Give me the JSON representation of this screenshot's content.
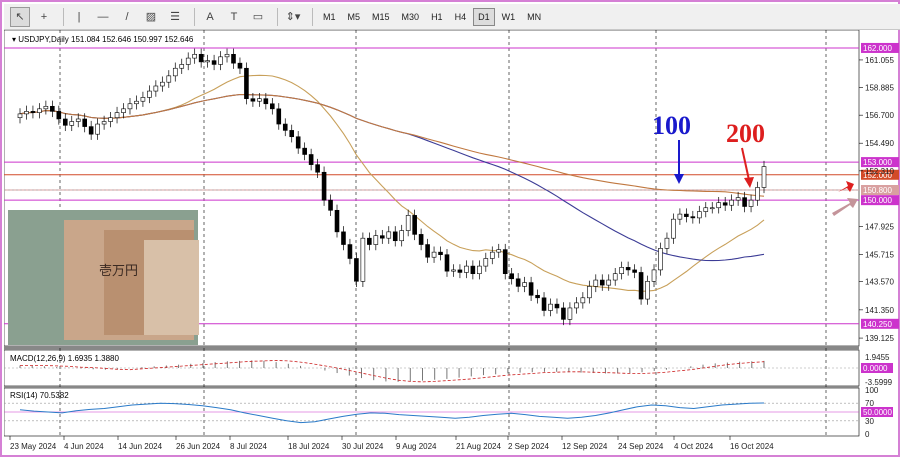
{
  "toolbar": {
    "tools": [
      {
        "name": "cursor-tool",
        "glyph": "↖"
      },
      {
        "name": "crosshair-tool",
        "glyph": "+"
      },
      {
        "name": "vertical-line-tool",
        "glyph": "|"
      },
      {
        "name": "horizontal-line-tool",
        "glyph": "—"
      },
      {
        "name": "trendline-tool",
        "glyph": "/"
      },
      {
        "name": "channel-tool",
        "glyph": "▨"
      },
      {
        "name": "fibonacci-tool",
        "glyph": "☰"
      },
      {
        "name": "text-tool",
        "glyph": "A"
      },
      {
        "name": "text-label-tool",
        "glyph": "T"
      },
      {
        "name": "shapes-tool",
        "glyph": "▭"
      },
      {
        "name": "arrows-tool",
        "glyph": "⇕▾"
      }
    ],
    "timeframes": [
      "M1",
      "M5",
      "M15",
      "M30",
      "H1",
      "H4",
      "D1",
      "W1",
      "MN"
    ],
    "active_timeframe": "D1"
  },
  "chart_data": {
    "type": "candlestick",
    "symbol": "USDJPY,Daily",
    "ohlc_header": "151.084 152.646 150.997 152.646",
    "price_axis_ticks": [
      "161.055",
      "158.885",
      "156.700",
      "154.490",
      "152.310",
      "147.925",
      "145.715",
      "143.570",
      "141.350",
      "139.125"
    ],
    "ylim": [
      138.5,
      163.1
    ],
    "horizontal_levels": [
      {
        "label": "162.000",
        "value": 162.0,
        "color": "#cc33cc"
      },
      {
        "label": "153.000",
        "value": 153.0,
        "color": "#cc33cc"
      },
      {
        "label": "152.000",
        "value": 152.0,
        "color": "#d24a28"
      },
      {
        "label": "150.800",
        "value": 150.8,
        "color": "#d9a0a0"
      },
      {
        "label": "150.000",
        "value": 150.0,
        "color": "#cc33cc"
      },
      {
        "label": "140.250",
        "value": 140.25,
        "color": "#cc33cc"
      }
    ],
    "price_labels_partial": [
      "152.646"
    ],
    "date_labels": [
      "23 May 2024",
      "4 Jun 2024",
      "14 Jun 2024",
      "26 Jun 2024",
      "8 Jul 2024",
      "18 Jul 2024",
      "30 Jul 2024",
      "9 Aug 2024",
      "21 Aug 2024",
      "2 Sep 2024",
      "12 Sep 2024",
      "24 Sep 2024",
      "4 Oct 2024",
      "16 Oct 2024"
    ],
    "closes": [
      156.8,
      157.0,
      156.9,
      157.2,
      157.4,
      157.0,
      156.4,
      155.9,
      156.2,
      156.4,
      155.8,
      155.2,
      156.0,
      156.2,
      156.5,
      156.9,
      157.2,
      157.6,
      157.8,
      158.1,
      158.6,
      159.0,
      159.3,
      159.8,
      160.4,
      160.7,
      161.2,
      161.5,
      160.9,
      161.0,
      160.7,
      161.3,
      161.5,
      160.8,
      160.4,
      158.0,
      157.8,
      158.0,
      157.6,
      157.2,
      156.0,
      155.5,
      155.0,
      154.1,
      153.6,
      152.8,
      152.2,
      150.0,
      149.2,
      147.5,
      146.5,
      145.4,
      143.6,
      147.0,
      146.5,
      147.2,
      147.0,
      147.5,
      146.8,
      147.6,
      148.8,
      147.3,
      146.5,
      145.5,
      145.9,
      145.7,
      144.4,
      144.5,
      144.3,
      144.8,
      144.2,
      144.8,
      145.4,
      145.9,
      146.1,
      144.2,
      143.8,
      143.2,
      143.5,
      142.5,
      142.3,
      141.3,
      141.8,
      141.5,
      140.6,
      141.5,
      141.9,
      142.3,
      143.2,
      143.7,
      143.3,
      143.7,
      144.2,
      144.7,
      144.5,
      144.3,
      142.2,
      143.6,
      144.5,
      146.2,
      147.0,
      148.5,
      148.9,
      148.7,
      148.6,
      149.1,
      149.4,
      149.4,
      149.8,
      149.6,
      150.0,
      150.2,
      149.5,
      150.0,
      151.0,
      152.646
    ],
    "ma": [
      {
        "period": "20",
        "color": "#c8a05a"
      },
      {
        "period": "100",
        "color": "#3c3c96"
      },
      {
        "period": "200",
        "color": "#c07840"
      }
    ],
    "annotations": [
      {
        "text": "100",
        "color": "#1a1acc"
      },
      {
        "text": "200",
        "color": "#dd1f1f"
      }
    ],
    "macd": {
      "label": "MACD(12,26,9) 1.6935 1.3880",
      "ticks": [
        "1.9455",
        "0.0000",
        "-3.5999"
      ],
      "values": [
        0.6,
        0.5,
        0.4,
        0.2,
        0.1,
        -0.1,
        -0.3,
        -0.4,
        -0.2,
        0.0,
        0.2,
        0.4,
        0.6,
        0.8,
        1.0,
        1.2,
        1.4,
        1.6,
        1.7,
        1.8,
        1.7,
        1.4,
        1.0,
        0.5,
        0.0,
        -0.6,
        -1.2,
        -1.8,
        -2.4,
        -2.9,
        -3.2,
        -3.3,
        -3.2,
        -3.0,
        -2.8,
        -2.6,
        -2.3,
        -2.0,
        -1.7,
        -1.5,
        -1.3,
        -1.1,
        -1.0,
        -0.9,
        -0.9,
        -1.0,
        -1.1,
        -1.2,
        -1.3,
        -1.3,
        -1.2,
        -1.0,
        -0.7,
        -0.4,
        0.0,
        0.4,
        0.8,
        1.1,
        1.3,
        1.5,
        1.6,
        1.7
      ]
    },
    "rsi": {
      "label": "RSI(14) 70.5382",
      "ticks": [
        "100",
        "70",
        "50",
        "30",
        "0"
      ],
      "values": [
        55,
        52,
        50,
        48,
        53,
        56,
        58,
        62,
        66,
        68,
        70,
        69,
        67,
        64,
        60,
        55,
        48,
        42,
        36,
        30,
        26,
        28,
        34,
        40,
        45,
        48,
        47,
        44,
        42,
        40,
        38,
        36,
        38,
        42,
        45,
        47,
        44,
        40,
        38,
        36,
        38,
        42,
        48,
        55,
        62,
        66,
        64,
        60,
        58,
        62,
        66,
        68,
        70,
        70.5
      ]
    }
  }
}
